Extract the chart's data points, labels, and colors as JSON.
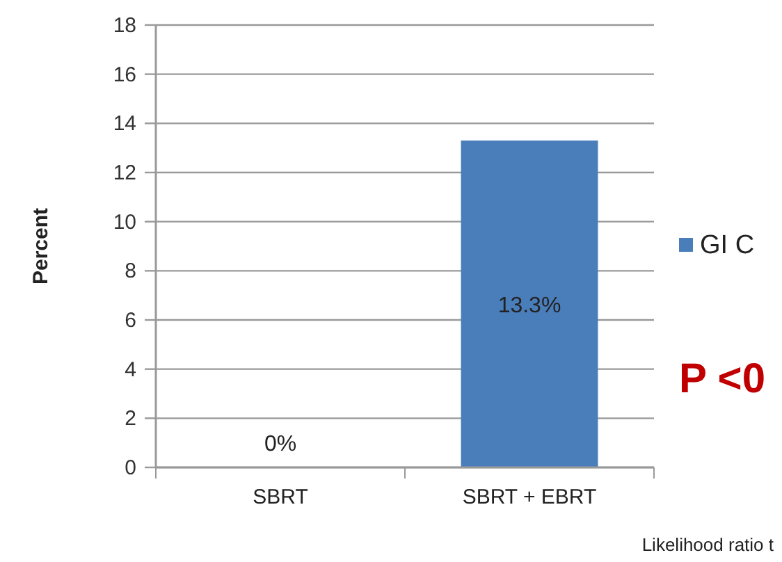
{
  "chart_data": {
    "type": "bar",
    "ylabel": "Percent",
    "categories": [
      "SBRT",
      "SBRT + EBRT"
    ],
    "series": [
      {
        "name": "GI C",
        "color": "#4a7ebb",
        "values": [
          0,
          13.3
        ],
        "value_labels": [
          "0%",
          "13.3%"
        ]
      }
    ],
    "ylim": [
      0,
      18
    ],
    "yticks": [
      0,
      2,
      4,
      6,
      8,
      10,
      12,
      14,
      16,
      18
    ],
    "grid": "y",
    "legend": "right",
    "annotations": [
      "P <0",
      "Likelihood ratio t"
    ]
  }
}
